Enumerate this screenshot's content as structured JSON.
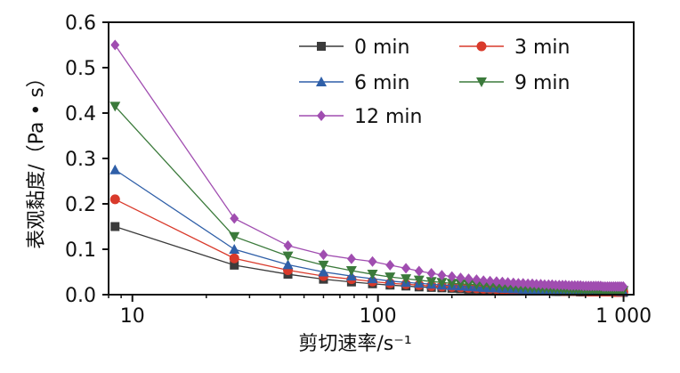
{
  "chart_data": {
    "type": "line",
    "title": "",
    "xlabel": "剪切速率/s⁻¹",
    "ylabel": "表观黏度/（Pa • s）",
    "x_scale": "log",
    "xlim": [
      8,
      1100
    ],
    "ylim": [
      0,
      0.6
    ],
    "x_ticks": [
      10,
      100,
      1000
    ],
    "x_tick_labels": [
      "10",
      "100",
      "1 000"
    ],
    "y_ticks": [
      0.0,
      0.1,
      0.2,
      0.3,
      0.4,
      0.5,
      0.6
    ],
    "y_tick_labels": [
      "0.0",
      "0.1",
      "0.2",
      "0.3",
      "0.4",
      "0.5",
      "0.6"
    ],
    "grid": false,
    "legend_position": "top-right",
    "x": [
      8.5,
      26,
      43,
      60,
      78,
      95,
      112,
      130,
      147,
      165,
      182,
      200,
      217,
      234,
      252,
      269,
      286,
      304,
      321,
      338,
      356,
      373,
      390,
      408,
      425,
      442,
      460,
      477,
      495,
      512,
      529,
      547,
      564,
      581,
      599,
      616,
      633,
      651,
      668,
      685,
      703,
      720,
      737,
      755,
      772,
      789,
      807,
      824,
      841,
      859,
      876,
      893,
      911,
      928,
      946,
      963,
      980,
      998
    ],
    "series": [
      {
        "name": "0 min",
        "color": "#3b3b3b",
        "marker": "square",
        "values": [
          0.15,
          0.065,
          0.045,
          0.034,
          0.028,
          0.024,
          0.021,
          0.019,
          0.017,
          0.016,
          0.015,
          0.014,
          0.013,
          0.012,
          0.012,
          0.011,
          0.011,
          0.01,
          0.01,
          0.01,
          0.009,
          0.009,
          0.009,
          0.009,
          0.008,
          0.008,
          0.008,
          0.008,
          0.008,
          0.008,
          0.007,
          0.007,
          0.007,
          0.007,
          0.007,
          0.007,
          0.007,
          0.007,
          0.006,
          0.006,
          0.006,
          0.006,
          0.006,
          0.006,
          0.006,
          0.006,
          0.006,
          0.006,
          0.006,
          0.006,
          0.006,
          0.006,
          0.006,
          0.005,
          0.005,
          0.005,
          0.005,
          0.005
        ]
      },
      {
        "name": "3 min",
        "color": "#d93a2b",
        "marker": "circle",
        "values": [
          0.21,
          0.08,
          0.054,
          0.041,
          0.034,
          0.029,
          0.025,
          0.023,
          0.021,
          0.019,
          0.018,
          0.017,
          0.016,
          0.015,
          0.014,
          0.013,
          0.013,
          0.012,
          0.012,
          0.011,
          0.011,
          0.011,
          0.01,
          0.01,
          0.01,
          0.01,
          0.009,
          0.009,
          0.009,
          0.009,
          0.009,
          0.009,
          0.008,
          0.008,
          0.008,
          0.008,
          0.008,
          0.008,
          0.008,
          0.008,
          0.007,
          0.007,
          0.007,
          0.007,
          0.007,
          0.007,
          0.007,
          0.007,
          0.007,
          0.007,
          0.007,
          0.007,
          0.007,
          0.006,
          0.006,
          0.006,
          0.006,
          0.006
        ]
      },
      {
        "name": "6 min",
        "color": "#2f5fa8",
        "marker": "triangle-up",
        "values": [
          0.275,
          0.1,
          0.066,
          0.05,
          0.041,
          0.035,
          0.03,
          0.027,
          0.025,
          0.023,
          0.021,
          0.02,
          0.019,
          0.018,
          0.017,
          0.016,
          0.015,
          0.015,
          0.014,
          0.014,
          0.013,
          0.013,
          0.012,
          0.012,
          0.012,
          0.011,
          0.011,
          0.011,
          0.011,
          0.01,
          0.01,
          0.01,
          0.01,
          0.01,
          0.01,
          0.009,
          0.009,
          0.009,
          0.009,
          0.009,
          0.009,
          0.009,
          0.009,
          0.008,
          0.008,
          0.008,
          0.008,
          0.008,
          0.008,
          0.008,
          0.008,
          0.008,
          0.008,
          0.008,
          0.008,
          0.008,
          0.007,
          0.007
        ]
      },
      {
        "name": "9 min",
        "color": "#3b7a3b",
        "marker": "triangle-down",
        "values": [
          0.415,
          0.128,
          0.085,
          0.065,
          0.053,
          0.045,
          0.039,
          0.035,
          0.032,
          0.029,
          0.027,
          0.025,
          0.024,
          0.023,
          0.022,
          0.021,
          0.02,
          0.019,
          0.018,
          0.018,
          0.017,
          0.016,
          0.016,
          0.015,
          0.015,
          0.015,
          0.014,
          0.014,
          0.014,
          0.013,
          0.013,
          0.013,
          0.013,
          0.012,
          0.012,
          0.012,
          0.012,
          0.012,
          0.011,
          0.011,
          0.011,
          0.011,
          0.011,
          0.011,
          0.011,
          0.01,
          0.01,
          0.01,
          0.01,
          0.01,
          0.01,
          0.01,
          0.01,
          0.01,
          0.01,
          0.01,
          0.009,
          0.009
        ]
      },
      {
        "name": "12 min",
        "color": "#a04db0",
        "marker": "diamond",
        "values": [
          0.55,
          0.168,
          0.108,
          0.088,
          0.079,
          0.073,
          0.065,
          0.058,
          0.052,
          0.047,
          0.043,
          0.04,
          0.037,
          0.035,
          0.033,
          0.031,
          0.03,
          0.029,
          0.028,
          0.027,
          0.026,
          0.025,
          0.025,
          0.024,
          0.024,
          0.023,
          0.023,
          0.022,
          0.022,
          0.022,
          0.021,
          0.021,
          0.021,
          0.021,
          0.02,
          0.02,
          0.02,
          0.02,
          0.02,
          0.019,
          0.019,
          0.019,
          0.019,
          0.019,
          0.019,
          0.019,
          0.019,
          0.018,
          0.018,
          0.018,
          0.018,
          0.018,
          0.018,
          0.018,
          0.018,
          0.018,
          0.018,
          0.018
        ]
      }
    ]
  }
}
